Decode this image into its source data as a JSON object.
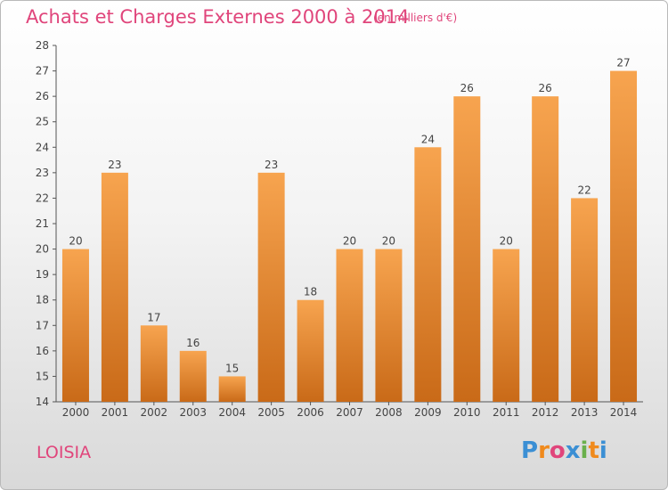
{
  "chart_data": {
    "type": "bar",
    "title": "Achats et Charges Externes 2000 à 2014",
    "subtitle": "(en milliers d'€)",
    "categories": [
      "2000",
      "2001",
      "2002",
      "2003",
      "2004",
      "2005",
      "2006",
      "2007",
      "2008",
      "2009",
      "2010",
      "2011",
      "2012",
      "2013",
      "2014"
    ],
    "values": [
      20,
      23,
      17,
      16,
      15,
      23,
      18,
      20,
      20,
      24,
      26,
      20,
      26,
      22,
      27
    ],
    "ylim": [
      14,
      28
    ],
    "yticks": [
      14,
      15,
      16,
      17,
      18,
      19,
      20,
      21,
      22,
      23,
      24,
      25,
      26,
      27,
      28
    ],
    "grid": false,
    "bar_color_top": "#f7a44f",
    "bar_color_bottom": "#c96a18"
  },
  "commune": "LOISIA",
  "logo": {
    "letters": [
      "P",
      "r",
      "o",
      "x",
      "i",
      "t",
      "i"
    ],
    "colors": [
      "#3b8fd4",
      "#f08a1c",
      "#e0457b",
      "#3b8fd4",
      "#6ab04c",
      "#f08a1c",
      "#3b8fd4"
    ]
  }
}
